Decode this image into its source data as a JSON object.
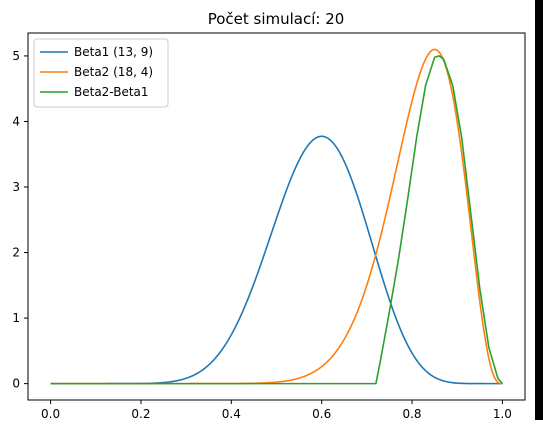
{
  "chart_data": {
    "type": "line",
    "title": "Počet simulací: 20",
    "xlabel": "",
    "ylabel": "",
    "xlim": [
      -0.05,
      1.05
    ],
    "ylim": [
      -0.25,
      5.35
    ],
    "xticks": [
      0.0,
      0.2,
      0.4,
      0.6,
      0.8,
      1.0
    ],
    "xtick_labels": [
      "0.0",
      "0.2",
      "0.4",
      "0.6",
      "0.8",
      "1.0"
    ],
    "yticks": [
      0,
      1,
      2,
      3,
      4,
      5
    ],
    "ytick_labels": [
      "0",
      "1",
      "2",
      "3",
      "4",
      "5"
    ],
    "grid": false,
    "legend_position": "top-left",
    "series": [
      {
        "name": "Beta1 (13, 9)",
        "color": "#1f77b4",
        "distribution": "beta",
        "params": [
          13,
          9
        ]
      },
      {
        "name": "Beta2 (18, 4)",
        "color": "#ff7f0e",
        "distribution": "beta",
        "params": [
          18,
          4
        ]
      },
      {
        "name": "Beta2-Beta1",
        "color": "#2ca02c",
        "distribution": "piecewise",
        "x": [
          0.0,
          0.72,
          0.73,
          0.75,
          0.77,
          0.79,
          0.81,
          0.83,
          0.85,
          0.86,
          0.87,
          0.89,
          0.91,
          0.93,
          0.95,
          0.97,
          0.99,
          1.0
        ],
        "y": [
          0.0,
          0.0,
          0.35,
          1.1,
          1.9,
          2.8,
          3.75,
          4.55,
          4.98,
          5.0,
          4.95,
          4.55,
          3.75,
          2.6,
          1.45,
          0.55,
          0.08,
          0.0
        ]
      }
    ]
  }
}
